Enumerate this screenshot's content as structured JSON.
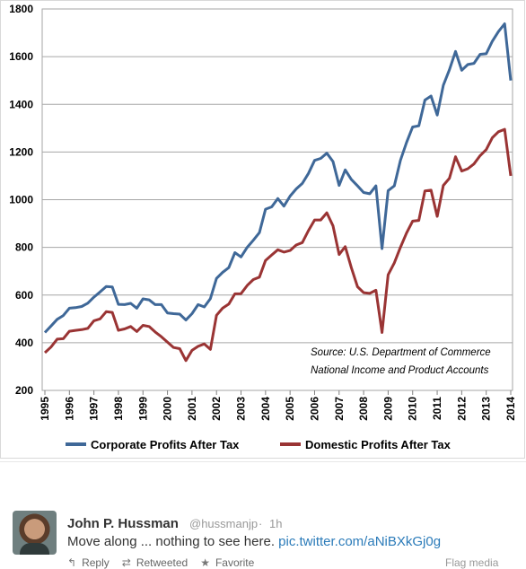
{
  "chart_data": {
    "type": "line",
    "title": "",
    "xlabel": "",
    "ylabel": "",
    "ylim": [
      200,
      1800
    ],
    "xlim": [
      1995,
      2014
    ],
    "y_ticks": [
      "200",
      "400",
      "600",
      "800",
      "1000",
      "1200",
      "1400",
      "1600",
      "1800"
    ],
    "x_ticks": [
      "1995",
      "1996",
      "1997",
      "1998",
      "1999",
      "2000",
      "2001",
      "2002",
      "2003",
      "2004",
      "2005",
      "2006",
      "2007",
      "2008",
      "2009",
      "2010",
      "2011",
      "2012",
      "2013",
      "2014"
    ],
    "grid": true,
    "legend": "bottom",
    "annotation": [
      "Source:  U.S. Department  of Commerce",
      "National Income and Product Accounts"
    ],
    "series": [
      {
        "name": "Corporate Profits After Tax",
        "color": "#3f6898",
        "x": [
          1995,
          1995.25,
          1995.5,
          1995.75,
          1996,
          1996.25,
          1996.5,
          1996.75,
          1997,
          1997.25,
          1997.5,
          1997.75,
          1998,
          1998.25,
          1998.5,
          1998.75,
          1999,
          1999.25,
          1999.5,
          1999.75,
          2000,
          2000.25,
          2000.5,
          2000.75,
          2001,
          2001.25,
          2001.5,
          2001.75,
          2002,
          2002.25,
          2002.5,
          2002.75,
          2003,
          2003.25,
          2003.5,
          2003.75,
          2004,
          2004.25,
          2004.5,
          2004.75,
          2005,
          2005.25,
          2005.5,
          2005.75,
          2006,
          2006.25,
          2006.5,
          2006.75,
          2007,
          2007.25,
          2007.5,
          2007.75,
          2008,
          2008.25,
          2008.5,
          2008.75,
          2009,
          2009.25,
          2009.5,
          2009.75,
          2010,
          2010.25,
          2010.5,
          2010.75,
          2011,
          2011.25,
          2011.5,
          2011.75,
          2012,
          2012.25,
          2012.5,
          2012.75,
          2013,
          2013.25,
          2013.5,
          2013.75,
          2014
        ],
        "values": [
          443,
          470,
          498,
          514,
          545,
          547,
          552,
          566,
          591,
          613,
          636,
          634,
          561,
          560,
          565,
          545,
          584,
          580,
          560,
          560,
          525,
          522,
          520,
          495,
          522,
          560,
          550,
          585,
          670,
          695,
          715,
          778,
          760,
          800,
          830,
          862,
          960,
          970,
          1005,
          973,
          1015,
          1045,
          1068,
          1110,
          1165,
          1173,
          1195,
          1160,
          1060,
          1125,
          1085,
          1058,
          1030,
          1025,
          1058,
          795,
          1038,
          1058,
          1165,
          1240,
          1305,
          1310,
          1418,
          1435,
          1355,
          1480,
          1545,
          1622,
          1543,
          1567,
          1572,
          1610,
          1612,
          1665,
          1705,
          1738,
          1500
        ]
      },
      {
        "name": "Domestic Profits After Tax",
        "color": "#9a3434",
        "x": [
          1995,
          1995.25,
          1995.5,
          1995.75,
          1996,
          1996.25,
          1996.5,
          1996.75,
          1997,
          1997.25,
          1997.5,
          1997.75,
          1998,
          1998.25,
          1998.5,
          1998.75,
          1999,
          1999.25,
          1999.5,
          1999.75,
          2000,
          2000.25,
          2000.5,
          2000.75,
          2001,
          2001.25,
          2001.5,
          2001.75,
          2002,
          2002.25,
          2002.5,
          2002.75,
          2003,
          2003.25,
          2003.5,
          2003.75,
          2004,
          2004.25,
          2004.5,
          2004.75,
          2005,
          2005.25,
          2005.5,
          2005.75,
          2006,
          2006.25,
          2006.5,
          2006.75,
          2007,
          2007.25,
          2007.5,
          2007.75,
          2008,
          2008.25,
          2008.5,
          2008.75,
          2009,
          2009.25,
          2009.5,
          2009.75,
          2010,
          2010.25,
          2010.5,
          2010.75,
          2011,
          2011.25,
          2011.5,
          2011.75,
          2012,
          2012.25,
          2012.5,
          2012.75,
          2013,
          2013.25,
          2013.5,
          2013.75,
          2014
        ],
        "values": [
          358,
          382,
          415,
          417,
          448,
          452,
          455,
          460,
          492,
          500,
          530,
          527,
          452,
          458,
          468,
          447,
          473,
          468,
          445,
          425,
          402,
          380,
          375,
          325,
          368,
          385,
          395,
          372,
          515,
          545,
          562,
          605,
          606,
          640,
          665,
          675,
          745,
          768,
          790,
          780,
          787,
          810,
          820,
          870,
          915,
          915,
          945,
          890,
          770,
          803,
          715,
          635,
          610,
          607,
          620,
          443,
          685,
          735,
          800,
          860,
          910,
          913,
          1037,
          1040,
          930,
          1060,
          1090,
          1180,
          1120,
          1130,
          1150,
          1185,
          1210,
          1260,
          1285,
          1295,
          1100
        ]
      }
    ]
  },
  "tweet": {
    "author_name": "John P. Hussman",
    "author_handle": "@hussmanjp",
    "separator": "·",
    "time": "1h",
    "text": "Move along ... nothing to see here. ",
    "link": "pic.twitter.com/aNiBXkGj0g",
    "actions": {
      "reply": "Reply",
      "retweeted": "Retweeted",
      "favorite": "Favorite"
    },
    "icons": {
      "reply": "reply-icon",
      "retweet": "retweet-icon",
      "favorite": "star-icon"
    },
    "flag_media": "Flag media"
  }
}
